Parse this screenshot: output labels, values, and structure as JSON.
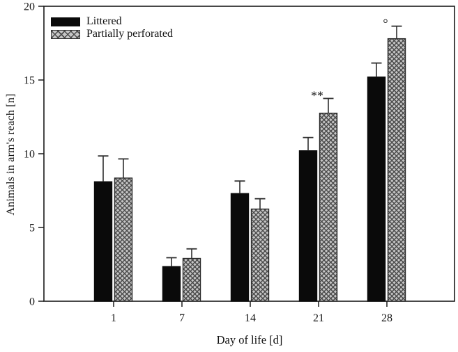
{
  "chart_data": {
    "type": "bar",
    "title": "",
    "xlabel": "Day of life [d]",
    "ylabel": "Animals in arm's reach [n]",
    "categories": [
      "1",
      "7",
      "14",
      "21",
      "28"
    ],
    "series": [
      {
        "name": "Littered",
        "style": "solid-black",
        "values": [
          8.1,
          2.35,
          7.3,
          10.2,
          15.2
        ],
        "errors_up": [
          1.75,
          0.6,
          0.85,
          0.9,
          0.95
        ]
      },
      {
        "name": "Partially perforated",
        "style": "crosshatch-gray",
        "values": [
          8.35,
          2.9,
          6.25,
          12.75,
          17.8
        ],
        "errors_up": [
          1.3,
          0.65,
          0.7,
          1.0,
          0.85
        ]
      }
    ],
    "ylim": [
      0,
      20
    ],
    "yticks": [
      0,
      5,
      10,
      15,
      20
    ],
    "grid": false,
    "frame": true,
    "legend_position": "top-left-inside",
    "annotations": [
      {
        "category": "21",
        "series": "Partially perforated",
        "text": "**"
      },
      {
        "category": "28",
        "series": "Partially perforated",
        "text": "°"
      }
    ],
    "colors": {
      "bar_black": "#0a0a0a",
      "hatch_bg": "#c6c6c6",
      "hatch_line": "#4b4b4b",
      "hatch_border": "#2b2b2b",
      "axis": "#1a1a1a",
      "error_bar": "#2e2e2e"
    }
  }
}
